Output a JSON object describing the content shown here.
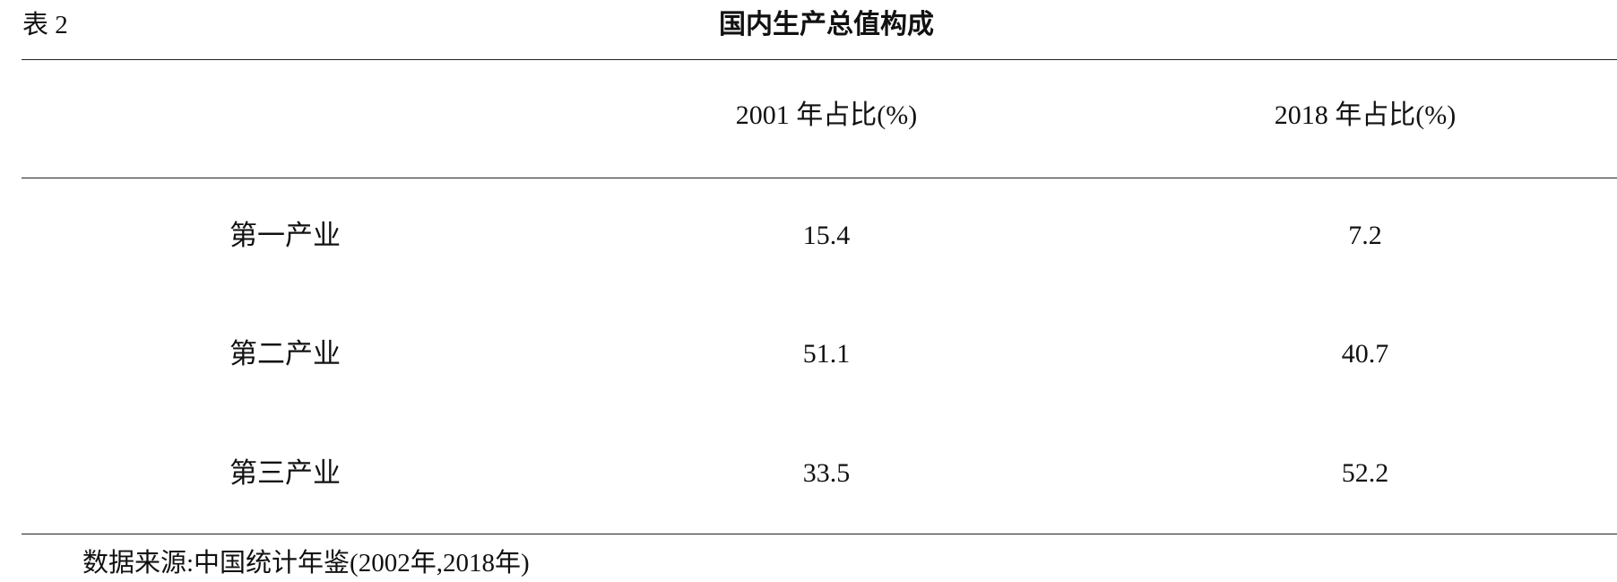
{
  "header": {
    "label": "表 2",
    "title": "国内生产总值构成"
  },
  "table": {
    "columns": [
      "2001 年占比(%)",
      "2018 年占比(%)"
    ],
    "rows": [
      [
        "第一产业",
        "15.4",
        "7.2"
      ],
      [
        "第二产业",
        "51.1",
        "40.7"
      ],
      [
        "第三产业",
        "33.5",
        "52.2"
      ]
    ]
  },
  "footer": {
    "source": "数据来源:中国统计年鉴(2002年,2018年)"
  }
}
